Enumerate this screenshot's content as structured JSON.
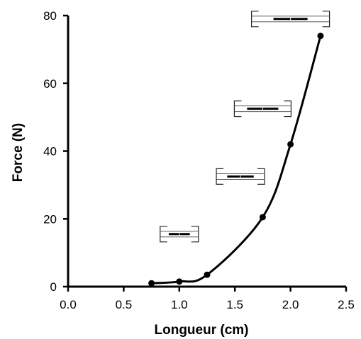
{
  "chart_data": {
    "type": "line",
    "xlabel": "Longueur (cm)",
    "ylabel": "Force (N)",
    "xlim": [
      0.0,
      2.5
    ],
    "ylim": [
      0,
      80
    ],
    "x_ticks": [
      "0.0",
      "0.5",
      "1.0",
      "1.5",
      "2.0",
      "2.5"
    ],
    "y_ticks": [
      "0",
      "20",
      "40",
      "60",
      "80"
    ],
    "grid": false,
    "series": [
      {
        "x": [
          0.75,
          1.0,
          1.25,
          1.75,
          2.0,
          2.27
        ],
        "y": [
          1,
          1.5,
          3.5,
          20.5,
          42,
          74
        ]
      }
    ],
    "annotations": [
      {
        "type": "sarcomere-diagram",
        "x": 1.0,
        "y": 15.5
      },
      {
        "type": "sarcomere-diagram",
        "x": 1.55,
        "y": 32.5
      },
      {
        "type": "sarcomere-diagram",
        "x": 1.75,
        "y": 52.5
      },
      {
        "type": "sarcomere-diagram",
        "x": 2.0,
        "y": 79
      }
    ],
    "line_color": "#000000",
    "marker_color": "#000000"
  }
}
